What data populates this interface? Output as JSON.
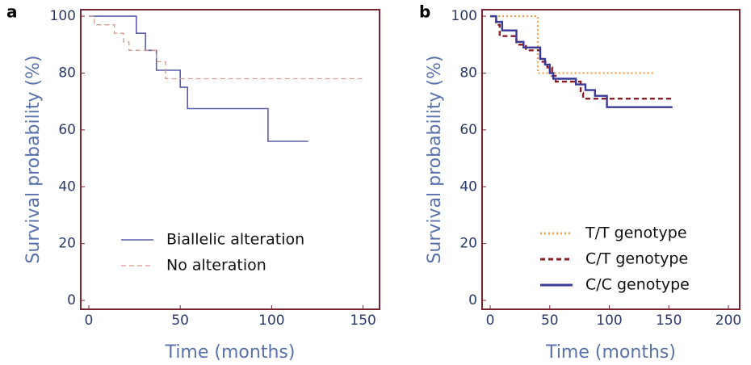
{
  "chart_data": [
    {
      "type": "line",
      "panel_label": "a",
      "xlabel": "Time (months)",
      "ylabel": "Survival probability (%)",
      "xlim": [
        -4.4,
        159
      ],
      "ylim": [
        -3.1,
        102.3
      ],
      "xticks": [
        0,
        50,
        100,
        150
      ],
      "yticks": [
        0,
        20,
        40,
        60,
        80,
        100
      ],
      "legend": "lower left",
      "frame_color": "#7a2430",
      "series": [
        {
          "name": "Biallelic alteration",
          "color": "#5c5caa",
          "linestyle": "solid",
          "x": [
            0,
            26,
            26,
            31,
            31,
            37,
            37,
            50,
            50,
            54,
            54,
            98,
            98,
            120
          ],
          "values": [
            100,
            100,
            94,
            94,
            88,
            88,
            81,
            81,
            75,
            75,
            67.5,
            67.5,
            56,
            56
          ]
        },
        {
          "name": "No alteration",
          "color": "#d49a8e",
          "linestyle": "dashed",
          "x": [
            0,
            3,
            3,
            14,
            14,
            19,
            19,
            22,
            22,
            37,
            37,
            42,
            42,
            150
          ],
          "values": [
            100,
            100,
            97,
            97,
            94,
            94,
            91,
            91,
            88,
            88,
            84,
            84,
            78,
            78
          ]
        }
      ]
    },
    {
      "type": "line",
      "panel_label": "b",
      "xlabel": "Time (months)",
      "ylabel": "Survival probability (%)",
      "xlim": [
        -6.8,
        209.5
      ],
      "ylim": [
        -3.1,
        102.3
      ],
      "xticks": [
        0,
        50,
        100,
        150,
        200
      ],
      "yticks": [
        0,
        20,
        40,
        60,
        80,
        100
      ],
      "legend": "lower right",
      "frame_color": "#7a2430",
      "series": [
        {
          "name": "T/T genotype",
          "color": "#f0a048",
          "linestyle": "dotted",
          "x": [
            0,
            40,
            40,
            137
          ],
          "values": [
            100,
            100,
            80,
            80
          ]
        },
        {
          "name": "C/T genotype",
          "color": "#8b1c24",
          "linestyle": "dashed",
          "x": [
            0,
            5,
            5,
            8,
            8,
            22,
            22,
            30,
            30,
            42,
            42,
            48,
            48,
            52,
            52,
            55,
            55,
            76,
            76,
            78,
            78,
            153
          ],
          "values": [
            100,
            100,
            97,
            97,
            93,
            93,
            90,
            90,
            88,
            88,
            84,
            84,
            82,
            82,
            79,
            79,
            77,
            77,
            73,
            73,
            71,
            71
          ]
        },
        {
          "name": "C/C genotype",
          "color": "#3a3a98",
          "linestyle": "solid",
          "x": [
            0,
            5,
            5,
            10,
            10,
            22,
            22,
            28,
            28,
            42,
            42,
            46,
            46,
            50,
            50,
            53,
            53,
            72,
            72,
            80,
            80,
            88,
            88,
            98,
            98,
            153
          ],
          "values": [
            100,
            100,
            98,
            98,
            95,
            95,
            91,
            91,
            89,
            89,
            85,
            85,
            83,
            83,
            80,
            80,
            78,
            78,
            76,
            76,
            74,
            74,
            72,
            72,
            68,
            68
          ]
        }
      ]
    }
  ]
}
